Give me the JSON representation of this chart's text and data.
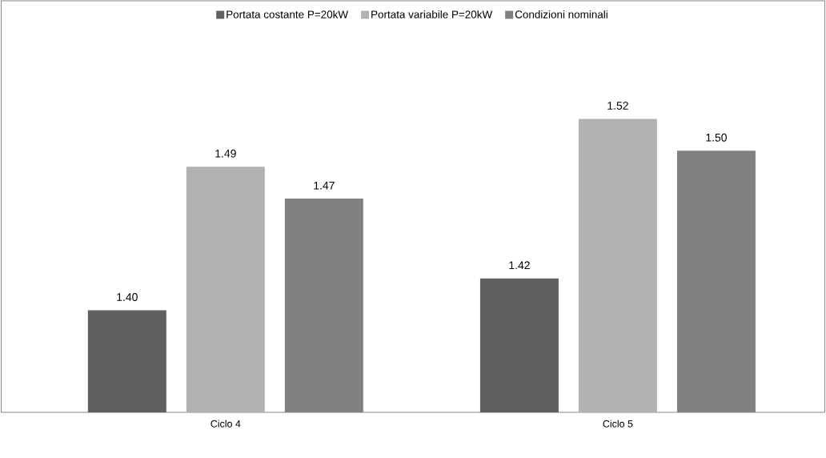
{
  "chart_data": {
    "type": "bar",
    "categories": [
      "Ciclo 4",
      "Ciclo 5"
    ],
    "series": [
      {
        "name": "Portata costante P=20kW",
        "color": "#606060",
        "values": [
          1.4,
          1.42
        ],
        "value_labels": [
          "1.40",
          "1.42"
        ]
      },
      {
        "name": "Portata variabile P=20kW",
        "color": "#b2b2b2",
        "values": [
          1.49,
          1.52
        ],
        "value_labels": [
          "1.49",
          "1.52"
        ]
      },
      {
        "name": "Condizioni nominali",
        "color": "#808080",
        "values": [
          1.47,
          1.5
        ],
        "value_labels": [
          "1.47",
          "1.50"
        ]
      }
    ],
    "ylim": [
      1.336,
      1.594
    ],
    "legend": "top",
    "tick_labels": "x"
  }
}
